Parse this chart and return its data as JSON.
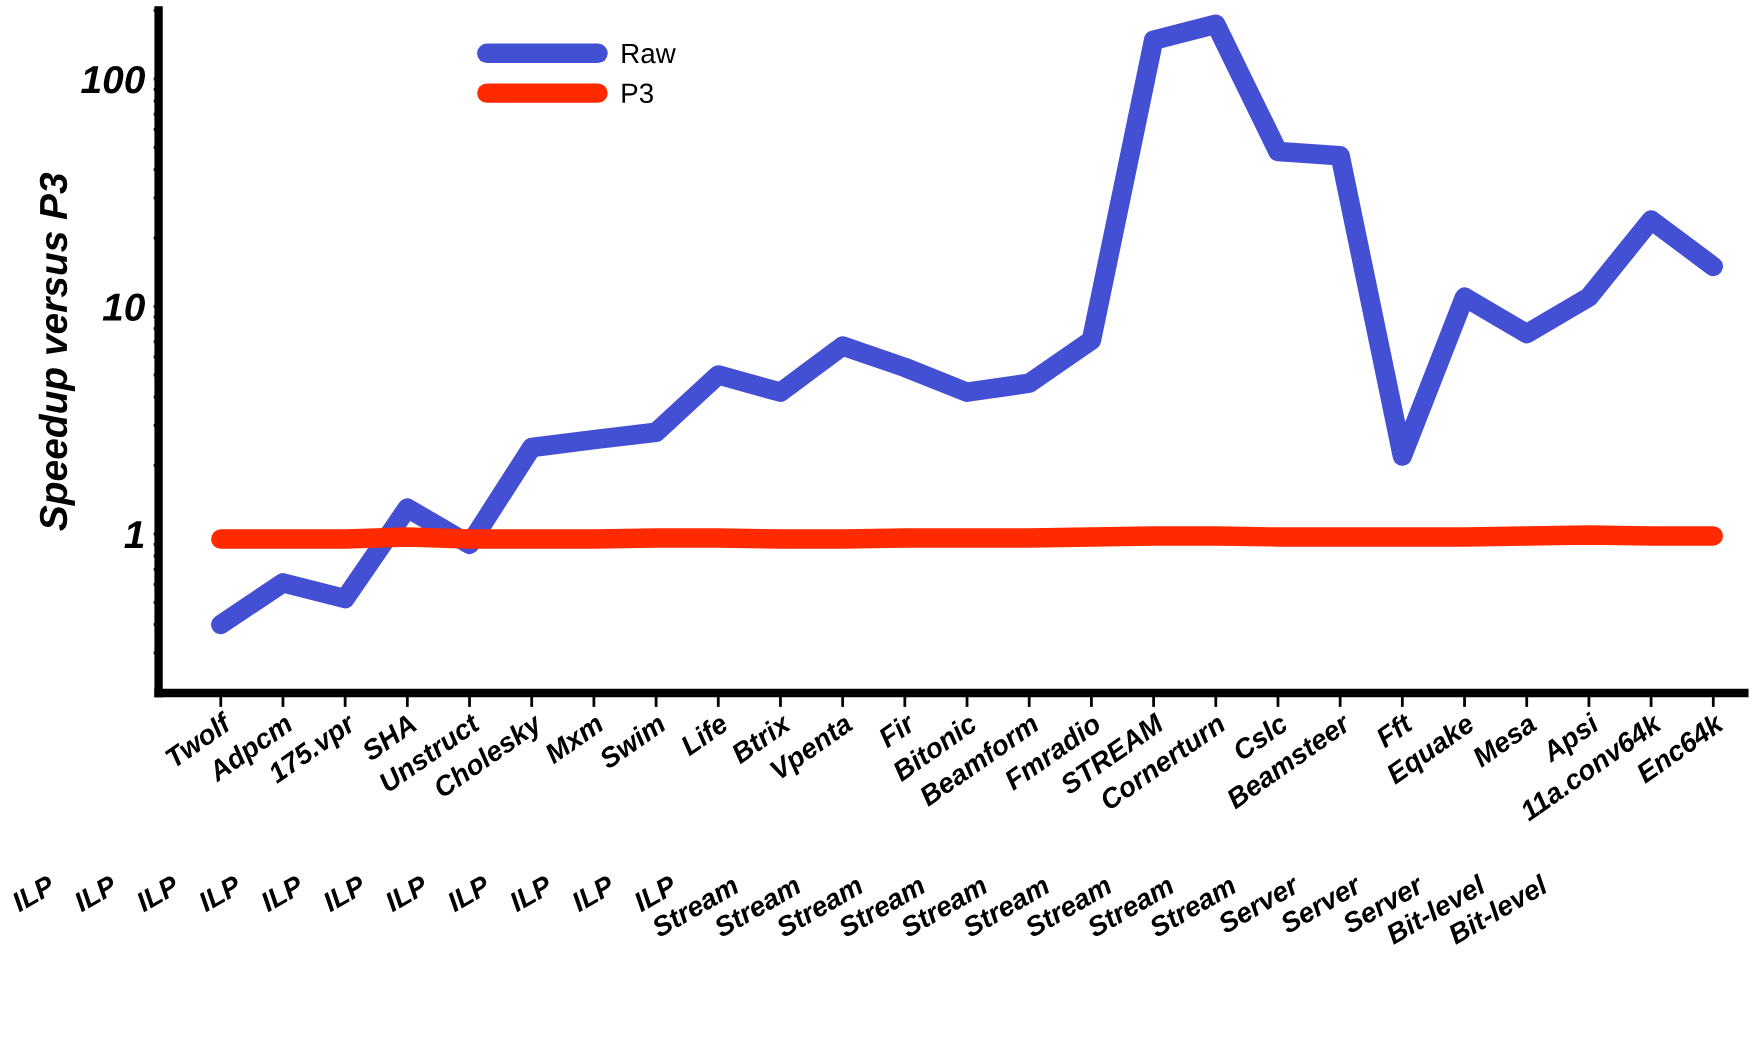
{
  "chart_data": {
    "type": "line",
    "ylabel": "Speedup versus P3",
    "log": "y",
    "categories": [
      "Twolf",
      "Adpcm",
      "175.vpr",
      "SHA",
      "Unstruct",
      "Cholesky",
      "Mxm",
      "Swim",
      "Life",
      "Btrix",
      "Vpenta",
      "Fir",
      "Bitonic",
      "Beamform",
      "Fmradio",
      "STREAM",
      "Cornerturn",
      "Cslc",
      "Beamsteer",
      "Fft",
      "Equake",
      "Mesa",
      "Apsi",
      "11a.conv64k",
      "Enc64k"
    ],
    "series": [
      {
        "name": "Raw",
        "color": "#4450d4",
        "values": [
          0.4,
          0.61,
          0.52,
          1.3,
          0.9,
          2.4,
          2.6,
          2.8,
          5.0,
          4.2,
          6.7,
          5.4,
          4.2,
          4.6,
          7.1,
          148,
          174,
          48,
          46,
          2.2,
          11,
          7.6,
          11,
          24,
          15
        ]
      },
      {
        "name": "P3",
        "color": "#ff2a00",
        "values": [
          0.95,
          0.95,
          0.95,
          0.97,
          0.95,
          0.95,
          0.95,
          0.96,
          0.96,
          0.95,
          0.95,
          0.96,
          0.96,
          0.96,
          0.97,
          0.98,
          0.98,
          0.97,
          0.97,
          0.97,
          0.97,
          0.98,
          0.99,
          0.98,
          0.98
        ]
      }
    ],
    "ylim": [
      0.2,
      200
    ],
    "yticks": [
      {
        "value": 0.3,
        "label": null
      },
      {
        "value": 0.4,
        "label": null
      },
      {
        "value": 0.5,
        "label": null
      },
      {
        "value": 0.6,
        "label": null
      },
      {
        "value": 0.7,
        "label": null
      },
      {
        "value": 0.8,
        "label": null
      },
      {
        "value": 0.9,
        "label": null
      },
      1,
      {
        "value": 2,
        "label": null
      },
      {
        "value": 3,
        "label": null
      },
      {
        "value": 4,
        "label": null
      },
      {
        "value": 5,
        "label": null
      },
      {
        "value": 6,
        "label": null
      },
      {
        "value": 7,
        "label": null
      },
      {
        "value": 8,
        "label": null
      },
      {
        "value": 9,
        "label": null
      },
      10,
      {
        "value": 20,
        "label": null
      },
      {
        "value": 30,
        "label": null
      },
      {
        "value": 40,
        "label": null
      },
      {
        "value": 50,
        "label": null
      },
      {
        "value": 60,
        "label": null
      },
      {
        "value": 70,
        "label": null
      },
      {
        "value": 80,
        "label": null
      },
      {
        "value": 90,
        "label": null
      },
      100,
      {
        "value": 200,
        "label": null
      }
    ],
    "annotations": [
      "ILP",
      "ILP",
      "ILP",
      "ILP",
      "ILP",
      "ILP",
      "ILP",
      "ILP",
      "ILP",
      "ILP",
      "ILP",
      "Stream",
      "Stream",
      "Stream",
      "Stream",
      "Stream",
      "Stream",
      "Stream",
      "Stream",
      "Stream",
      "Server",
      "Server",
      "Server",
      "Bit-level",
      "Bit-level"
    ],
    "legend": "top left",
    "grid": false,
    "line_style": "solid"
  }
}
